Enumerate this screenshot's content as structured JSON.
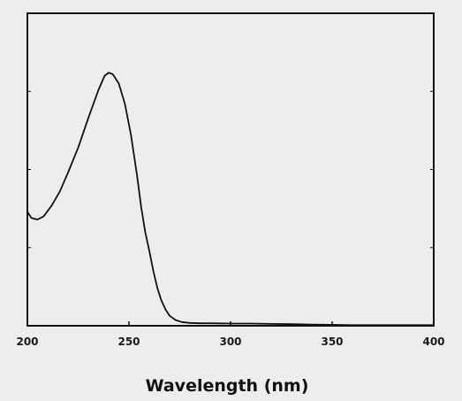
{
  "chart_data": {
    "type": "line",
    "title": "",
    "xlabel": "Wavelength (nm)",
    "ylabel": "",
    "xlim": [
      200,
      400
    ],
    "ylim": [
      0,
      1
    ],
    "x_ticks": [
      200,
      250,
      300,
      350,
      400
    ],
    "x_tick_labels": [
      "200",
      "250",
      "300",
      "350",
      "400"
    ],
    "y_tick_labels": [],
    "grid": false,
    "legend": "none",
    "series": [
      {
        "x": [
          200,
          202,
          205,
          208,
          212,
          216,
          220,
          225,
          230,
          235,
          238,
          240,
          242,
          245,
          248,
          251,
          254,
          256,
          258,
          260,
          262,
          264,
          266,
          268,
          270,
          273,
          276,
          280,
          285,
          290,
          300,
          310,
          320,
          330,
          340,
          350,
          360,
          370,
          380,
          390,
          400
        ],
        "values": [
          0.365,
          0.345,
          0.34,
          0.35,
          0.385,
          0.43,
          0.49,
          0.57,
          0.665,
          0.755,
          0.8,
          0.81,
          0.805,
          0.775,
          0.71,
          0.61,
          0.48,
          0.38,
          0.3,
          0.24,
          0.175,
          0.12,
          0.08,
          0.052,
          0.032,
          0.018,
          0.012,
          0.009,
          0.008,
          0.008,
          0.007,
          0.007,
          0.006,
          0.005,
          0.004,
          0.003,
          0.002,
          0.002,
          0.002,
          0.002,
          0.002
        ]
      }
    ],
    "colors": {
      "background": "#ededed",
      "axis": "#111111",
      "line": "#111111"
    }
  }
}
